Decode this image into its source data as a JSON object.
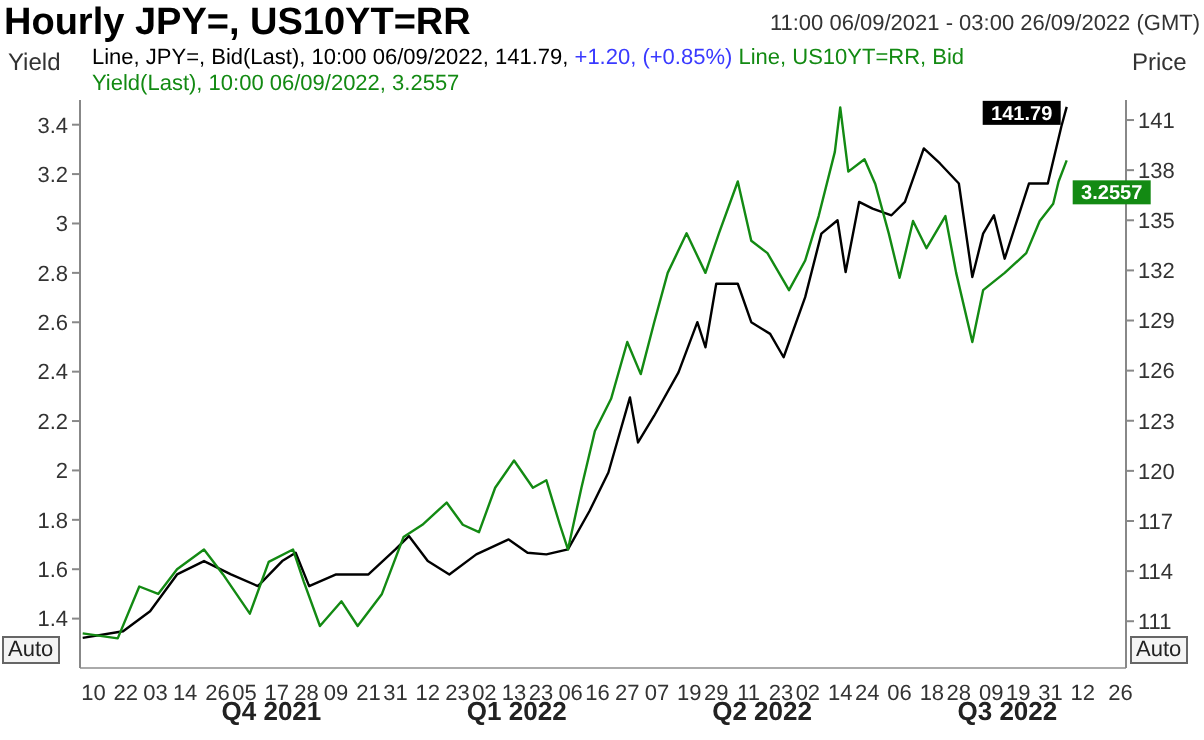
{
  "chart_data": {
    "type": "line",
    "title": "Hourly JPY=, US10YT=RR",
    "subtitle": "11:00 06/09/2021 - 03:00 26/09/2022 (GMT)",
    "ylabel": "Yield",
    "y2label": "Price",
    "legend": "top left",
    "annotations": [
      "+1.20, (+0.85%)",
      "Auto",
      "Auto"
    ],
    "xlim": [
      "2021-09-05",
      "2022-09-28"
    ],
    "xticks": [
      {
        "value": "2021-09-10",
        "label": "10"
      },
      {
        "value": "2021-09-22",
        "label": "22"
      },
      {
        "value": "2021-10-03",
        "label": "03"
      },
      {
        "value": "2021-10-14",
        "label": "14"
      },
      {
        "value": "2021-10-26",
        "label": "26"
      },
      {
        "value": "2021-11-05",
        "label": "05"
      },
      {
        "value": "2021-11-17",
        "label": "17"
      },
      {
        "value": "2021-11-28",
        "label": "28"
      },
      {
        "value": "2021-12-09",
        "label": "09"
      },
      {
        "value": "2021-12-21",
        "label": "21"
      },
      {
        "value": "2021-12-31",
        "label": "31"
      },
      {
        "value": "2022-01-12",
        "label": "12"
      },
      {
        "value": "2022-01-23",
        "label": "23"
      },
      {
        "value": "2022-02-02",
        "label": "02"
      },
      {
        "value": "2022-02-13",
        "label": "13"
      },
      {
        "value": "2022-02-23",
        "label": "23"
      },
      {
        "value": "2022-03-06",
        "label": "06"
      },
      {
        "value": "2022-03-16",
        "label": "16"
      },
      {
        "value": "2022-03-27",
        "label": "27"
      },
      {
        "value": "2022-04-07",
        "label": "07"
      },
      {
        "value": "2022-04-19",
        "label": "19"
      },
      {
        "value": "2022-04-29",
        "label": "29"
      },
      {
        "value": "2022-05-11",
        "label": "11"
      },
      {
        "value": "2022-05-23",
        "label": "23"
      },
      {
        "value": "2022-06-02",
        "label": "02"
      },
      {
        "value": "2022-06-14",
        "label": "14"
      },
      {
        "value": "2022-06-24",
        "label": "24"
      },
      {
        "value": "2022-07-06",
        "label": "06"
      },
      {
        "value": "2022-07-18",
        "label": "18"
      },
      {
        "value": "2022-07-28",
        "label": "28"
      },
      {
        "value": "2022-08-09",
        "label": "09"
      },
      {
        "value": "2022-08-19",
        "label": "19"
      },
      {
        "value": "2022-08-31",
        "label": "31"
      },
      {
        "value": "2022-09-12",
        "label": "12"
      },
      {
        "value": "2022-09-26",
        "label": "26"
      }
    ],
    "x2lim": [
      "2021-09-05",
      "2022-09-28"
    ],
    "x2ticks": [
      {
        "value": "2021-11-15",
        "label": "Q4 2021"
      },
      {
        "value": "2022-02-14",
        "label": "Q1 2022"
      },
      {
        "value": "2022-05-16",
        "label": "Q2 2022"
      },
      {
        "value": "2022-08-15",
        "label": "Q3 2022"
      }
    ],
    "ylim": [
      1.2,
      3.5
    ],
    "yticks": [
      1.4,
      1.6,
      1.8,
      2,
      2.2,
      2.4,
      2.6,
      2.8,
      3,
      3.2,
      3.4
    ],
    "y2lim": [
      108.2,
      142.2
    ],
    "y2ticks": [
      111,
      114,
      117,
      120,
      123,
      126,
      129,
      132,
      135,
      138,
      141
    ],
    "series": [
      {
        "name": "Line, JPY=, Bid(Last), 10:00 06/09/2022, 141.79,",
        "color": "#000000",
        "axis": "y2",
        "x": [
          "2021-09-06",
          "2021-09-21",
          "2021-10-01",
          "2021-10-11",
          "2021-10-21",
          "2021-10-31",
          "2021-11-10",
          "2021-11-19",
          "2021-11-24",
          "2021-11-29",
          "2021-12-09",
          "2021-12-21",
          "2021-12-31",
          "2022-01-05",
          "2022-01-12",
          "2022-01-20",
          "2022-01-30",
          "2022-02-11",
          "2022-02-18",
          "2022-02-25",
          "2022-03-05",
          "2022-03-13",
          "2022-03-20",
          "2022-03-28",
          "2022-03-31",
          "2022-04-06",
          "2022-04-15",
          "2022-04-22",
          "2022-04-25",
          "2022-04-29",
          "2022-05-07",
          "2022-05-12",
          "2022-05-19",
          "2022-05-24",
          "2022-06-01",
          "2022-06-07",
          "2022-06-13",
          "2022-06-16",
          "2022-06-21",
          "2022-06-26",
          "2022-07-03",
          "2022-07-08",
          "2022-07-15",
          "2022-07-21",
          "2022-07-28",
          "2022-08-02",
          "2022-08-06",
          "2022-08-10",
          "2022-08-14",
          "2022-08-23",
          "2022-08-30",
          "2022-09-04",
          "2022-09-06"
        ],
        "value_labels": [
          null,
          null,
          null,
          null,
          null,
          null,
          null,
          null,
          null,
          null,
          null,
          null,
          null,
          null,
          null,
          null,
          null,
          null,
          null,
          null,
          null,
          null,
          null,
          null,
          null,
          null,
          null,
          null,
          null,
          null,
          null,
          null,
          null,
          null,
          null,
          null,
          null,
          null,
          null,
          null,
          null,
          null,
          null,
          null,
          null,
          null,
          null,
          null,
          null,
          null,
          null,
          null,
          "141.79"
        ],
        "values": [
          110.0,
          110.4,
          111.6,
          113.8,
          114.6,
          113.8,
          113.1,
          114.6,
          115.1,
          113.1,
          113.8,
          113.8,
          115.3,
          116.1,
          114.6,
          113.8,
          115.0,
          115.9,
          115.1,
          115.0,
          115.3,
          117.6,
          119.9,
          124.4,
          121.7,
          123.3,
          125.9,
          128.9,
          127.4,
          131.2,
          131.2,
          128.9,
          128.2,
          126.8,
          130.4,
          134.2,
          135.0,
          131.9,
          136.1,
          135.7,
          135.3,
          136.1,
          139.3,
          138.4,
          137.2,
          131.6,
          134.2,
          135.3,
          132.7,
          137.2,
          137.2,
          140.6,
          141.79
        ]
      },
      {
        "name": "Line, US10YT=RR, Bid Yield(Last), 10:00 06/09/2022, 3.2557",
        "color": "#138a13",
        "axis": "y",
        "x": [
          "2021-09-06",
          "2021-09-19",
          "2021-09-27",
          "2021-10-04",
          "2021-10-11",
          "2021-10-21",
          "2021-10-28",
          "2021-11-07",
          "2021-11-14",
          "2021-11-23",
          "2021-11-27",
          "2021-12-03",
          "2021-12-11",
          "2021-12-17",
          "2021-12-26",
          "2022-01-03",
          "2022-01-10",
          "2022-01-19",
          "2022-01-25",
          "2022-01-31",
          "2022-02-06",
          "2022-02-13",
          "2022-02-20",
          "2022-02-25",
          "2022-03-02",
          "2022-03-05",
          "2022-03-10",
          "2022-03-15",
          "2022-03-21",
          "2022-03-27",
          "2022-04-01",
          "2022-04-06",
          "2022-04-11",
          "2022-04-18",
          "2022-04-25",
          "2022-04-30",
          "2022-05-07",
          "2022-05-12",
          "2022-05-18",
          "2022-05-26",
          "2022-06-01",
          "2022-06-06",
          "2022-06-12",
          "2022-06-14",
          "2022-06-17",
          "2022-06-23",
          "2022-06-27",
          "2022-07-02",
          "2022-07-06",
          "2022-07-11",
          "2022-07-16",
          "2022-07-23",
          "2022-07-27",
          "2022-08-02",
          "2022-08-06",
          "2022-08-14",
          "2022-08-22",
          "2022-08-27",
          "2022-09-01",
          "2022-09-03",
          "2022-09-06"
        ],
        "value_labels": [
          null,
          null,
          null,
          null,
          null,
          null,
          null,
          null,
          null,
          null,
          null,
          null,
          null,
          null,
          null,
          null,
          null,
          null,
          null,
          null,
          null,
          null,
          null,
          null,
          null,
          null,
          null,
          null,
          null,
          null,
          null,
          null,
          null,
          null,
          null,
          null,
          null,
          null,
          null,
          null,
          null,
          null,
          null,
          null,
          null,
          null,
          null,
          null,
          null,
          null,
          null,
          null,
          null,
          null,
          null,
          null,
          null,
          null,
          null,
          null,
          "3.2557"
        ],
        "values": [
          1.34,
          1.32,
          1.53,
          1.5,
          1.6,
          1.68,
          1.58,
          1.42,
          1.63,
          1.68,
          1.55,
          1.37,
          1.47,
          1.37,
          1.5,
          1.73,
          1.78,
          1.87,
          1.78,
          1.75,
          1.93,
          2.04,
          1.93,
          1.96,
          1.78,
          1.68,
          1.93,
          2.16,
          2.29,
          2.52,
          2.39,
          2.6,
          2.8,
          2.96,
          2.8,
          2.96,
          3.17,
          2.93,
          2.88,
          2.73,
          2.85,
          3.03,
          3.29,
          3.47,
          3.21,
          3.26,
          3.16,
          2.96,
          2.78,
          3.01,
          2.9,
          3.03,
          2.8,
          2.52,
          2.73,
          2.8,
          2.88,
          3.01,
          3.08,
          3.17,
          3.2557
        ]
      }
    ]
  }
}
